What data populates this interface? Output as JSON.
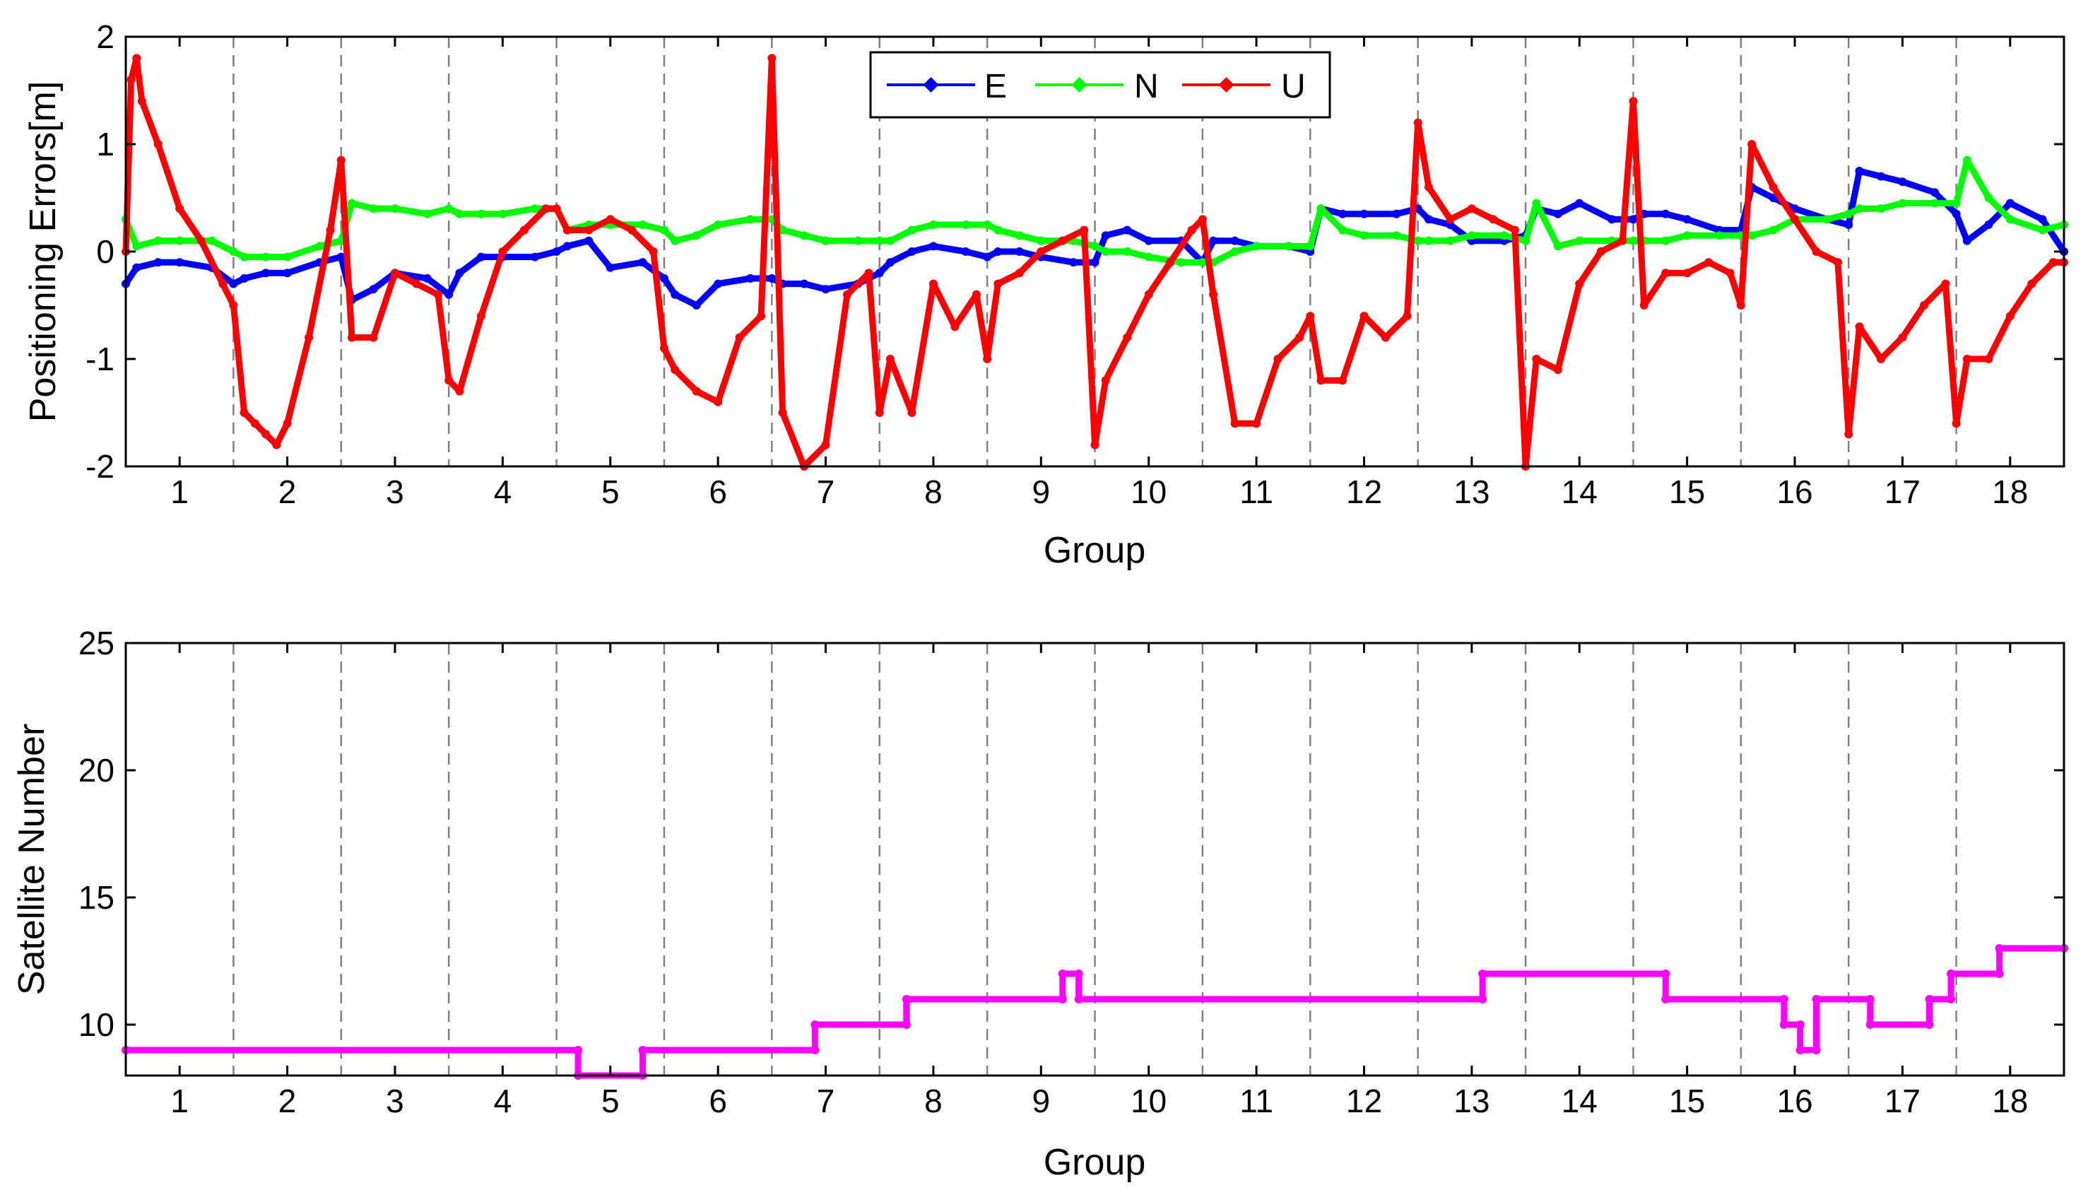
{
  "chart_data": [
    {
      "type": "line",
      "title": "",
      "xlabel": "Group",
      "ylabel": "Positioning Errors[m]",
      "xlim": [
        0.5,
        18.5
      ],
      "ylim": [
        -2,
        2
      ],
      "xticks": [
        1,
        2,
        3,
        4,
        5,
        6,
        7,
        8,
        9,
        10,
        11,
        12,
        13,
        14,
        15,
        16,
        17,
        18
      ],
      "yticks": [
        -2,
        -1,
        0,
        1,
        2
      ],
      "group_boundaries": [
        1.5,
        2.5,
        3.5,
        4.5,
        5.5,
        6.5,
        7.5,
        8.5,
        9.5,
        10.5,
        11.5,
        12.5,
        13.5,
        14.5,
        15.5,
        16.5,
        17.5
      ],
      "legend": {
        "location": "top-center",
        "entries": [
          "E",
          "N",
          "U"
        ]
      },
      "series": [
        {
          "name": "E",
          "color": "#0000ff",
          "x": [
            0.5,
            0.6,
            0.8,
            1.0,
            1.3,
            1.5,
            1.6,
            1.8,
            2.0,
            2.3,
            2.5,
            2.6,
            2.8,
            3.0,
            3.3,
            3.5,
            3.6,
            3.8,
            4.0,
            4.3,
            4.5,
            4.6,
            4.8,
            5.0,
            5.3,
            5.5,
            5.6,
            5.8,
            6.0,
            6.3,
            6.5,
            6.6,
            6.8,
            7.0,
            7.3,
            7.5,
            7.6,
            7.8,
            8.0,
            8.3,
            8.5,
            8.6,
            8.8,
            9.0,
            9.3,
            9.5,
            9.6,
            9.8,
            10.0,
            10.3,
            10.5,
            10.6,
            10.8,
            11.0,
            11.3,
            11.5,
            11.6,
            11.8,
            12.0,
            12.3,
            12.5,
            12.6,
            12.8,
            13.0,
            13.3,
            13.5,
            13.6,
            13.8,
            14.0,
            14.3,
            14.5,
            14.6,
            14.8,
            15.0,
            15.3,
            15.5,
            15.6,
            15.8,
            16.0,
            16.3,
            16.5,
            16.6,
            16.8,
            17.0,
            17.3,
            17.5,
            17.6,
            17.8,
            18.0,
            18.3,
            18.5
          ],
          "values": [
            -0.3,
            -0.15,
            -0.1,
            -0.1,
            -0.15,
            -0.3,
            -0.25,
            -0.2,
            -0.2,
            -0.1,
            -0.05,
            -0.45,
            -0.35,
            -0.2,
            -0.25,
            -0.4,
            -0.2,
            -0.05,
            -0.05,
            -0.05,
            0.0,
            0.05,
            0.1,
            -0.15,
            -0.1,
            -0.25,
            -0.4,
            -0.5,
            -0.3,
            -0.25,
            -0.25,
            -0.3,
            -0.3,
            -0.35,
            -0.3,
            -0.2,
            -0.1,
            0.0,
            0.05,
            0.0,
            -0.05,
            0.0,
            0.0,
            -0.05,
            -0.1,
            -0.1,
            0.15,
            0.2,
            0.1,
            0.1,
            -0.1,
            0.1,
            0.1,
            0.05,
            0.05,
            0.0,
            0.4,
            0.35,
            0.35,
            0.35,
            0.4,
            0.3,
            0.25,
            0.1,
            0.1,
            0.15,
            0.4,
            0.35,
            0.45,
            0.3,
            0.3,
            0.35,
            0.35,
            0.3,
            0.2,
            0.2,
            0.6,
            0.5,
            0.4,
            0.3,
            0.25,
            0.75,
            0.7,
            0.65,
            0.55,
            0.35,
            0.1,
            0.25,
            0.45,
            0.3,
            0.0
          ]
        },
        {
          "name": "N",
          "color": "#00ff00",
          "x": [
            0.5,
            0.6,
            0.8,
            1.0,
            1.3,
            1.5,
            1.6,
            1.8,
            2.0,
            2.3,
            2.5,
            2.6,
            2.8,
            3.0,
            3.3,
            3.5,
            3.6,
            3.8,
            4.0,
            4.3,
            4.5,
            4.6,
            4.8,
            5.0,
            5.3,
            5.5,
            5.6,
            5.8,
            6.0,
            6.3,
            6.5,
            6.6,
            6.8,
            7.0,
            7.3,
            7.5,
            7.6,
            7.8,
            8.0,
            8.3,
            8.5,
            8.6,
            8.8,
            9.0,
            9.3,
            9.5,
            9.6,
            9.8,
            10.0,
            10.3,
            10.5,
            10.6,
            10.8,
            11.0,
            11.3,
            11.5,
            11.6,
            11.8,
            12.0,
            12.3,
            12.5,
            12.6,
            12.8,
            13.0,
            13.3,
            13.5,
            13.6,
            13.8,
            14.0,
            14.3,
            14.5,
            14.6,
            14.8,
            15.0,
            15.3,
            15.5,
            15.6,
            15.8,
            16.0,
            16.3,
            16.5,
            16.6,
            16.8,
            17.0,
            17.3,
            17.5,
            17.6,
            17.8,
            18.0,
            18.3,
            18.5
          ],
          "values": [
            0.3,
            0.05,
            0.1,
            0.1,
            0.1,
            0.0,
            -0.05,
            -0.05,
            -0.05,
            0.05,
            0.1,
            0.45,
            0.4,
            0.4,
            0.35,
            0.4,
            0.35,
            0.35,
            0.35,
            0.4,
            0.4,
            0.2,
            0.25,
            0.25,
            0.25,
            0.2,
            0.1,
            0.15,
            0.25,
            0.3,
            0.3,
            0.2,
            0.15,
            0.1,
            0.1,
            0.1,
            0.1,
            0.2,
            0.25,
            0.25,
            0.25,
            0.2,
            0.15,
            0.1,
            0.1,
            0.05,
            0.0,
            0.0,
            -0.05,
            -0.1,
            -0.1,
            -0.1,
            0.0,
            0.05,
            0.05,
            0.05,
            0.4,
            0.2,
            0.15,
            0.15,
            0.1,
            0.1,
            0.1,
            0.15,
            0.15,
            0.1,
            0.45,
            0.05,
            0.1,
            0.1,
            0.1,
            0.1,
            0.1,
            0.15,
            0.15,
            0.15,
            0.15,
            0.2,
            0.3,
            0.3,
            0.35,
            0.4,
            0.4,
            0.45,
            0.45,
            0.45,
            0.85,
            0.5,
            0.3,
            0.2,
            0.25
          ]
        },
        {
          "name": "U",
          "color": "#ff0000",
          "x": [
            0.5,
            0.55,
            0.6,
            0.65,
            0.8,
            1.0,
            1.2,
            1.4,
            1.5,
            1.6,
            1.7,
            1.8,
            1.9,
            2.0,
            2.2,
            2.4,
            2.5,
            2.6,
            2.8,
            3.0,
            3.2,
            3.4,
            3.5,
            3.6,
            3.8,
            4.0,
            4.2,
            4.4,
            4.5,
            4.6,
            4.8,
            5.0,
            5.2,
            5.4,
            5.5,
            5.6,
            5.8,
            6.0,
            6.2,
            6.4,
            6.5,
            6.6,
            6.8,
            7.0,
            7.2,
            7.4,
            7.5,
            7.6,
            7.8,
            8.0,
            8.2,
            8.4,
            8.5,
            8.6,
            8.8,
            9.0,
            9.2,
            9.4,
            9.5,
            9.6,
            9.8,
            10.0,
            10.2,
            10.4,
            10.5,
            10.6,
            10.8,
            11.0,
            11.2,
            11.4,
            11.5,
            11.6,
            11.8,
            12.0,
            12.2,
            12.4,
            12.5,
            12.6,
            12.8,
            13.0,
            13.2,
            13.4,
            13.5,
            13.6,
            13.8,
            14.0,
            14.2,
            14.4,
            14.5,
            14.6,
            14.8,
            15.0,
            15.2,
            15.4,
            15.5,
            15.6,
            15.8,
            16.0,
            16.2,
            16.4,
            16.5,
            16.6,
            16.8,
            17.0,
            17.2,
            17.4,
            17.5,
            17.6,
            17.8,
            18.0,
            18.2,
            18.4,
            18.5
          ],
          "values": [
            0.0,
            1.6,
            1.8,
            1.4,
            1.0,
            0.4,
            0.1,
            -0.3,
            -0.5,
            -1.5,
            -1.6,
            -1.7,
            -1.8,
            -1.6,
            -0.8,
            0.2,
            0.85,
            -0.8,
            -0.8,
            -0.2,
            -0.3,
            -0.4,
            -1.2,
            -1.3,
            -0.6,
            0.0,
            0.2,
            0.4,
            0.4,
            0.2,
            0.2,
            0.3,
            0.2,
            0.0,
            -0.9,
            -1.1,
            -1.3,
            -1.4,
            -0.8,
            -0.6,
            1.8,
            -1.5,
            -2.0,
            -1.8,
            -0.4,
            -0.2,
            -1.5,
            -1.0,
            -1.5,
            -0.3,
            -0.7,
            -0.4,
            -1.0,
            -0.3,
            -0.2,
            0.0,
            0.1,
            0.2,
            -1.8,
            -1.2,
            -0.8,
            -0.4,
            -0.1,
            0.2,
            0.3,
            -0.4,
            -1.6,
            -1.6,
            -1.0,
            -0.8,
            -0.6,
            -1.2,
            -1.2,
            -0.6,
            -0.8,
            -0.6,
            1.2,
            0.6,
            0.3,
            0.4,
            0.3,
            0.2,
            -2.0,
            -1.0,
            -1.1,
            -0.3,
            0.0,
            0.1,
            1.4,
            -0.5,
            -0.2,
            -0.2,
            -0.1,
            -0.2,
            -0.5,
            1.0,
            0.6,
            0.3,
            0.0,
            -0.1,
            -1.7,
            -0.7,
            -1.0,
            -0.8,
            -0.5,
            -0.3,
            -1.6,
            -1.0,
            -1.0,
            -0.6,
            -0.3,
            -0.1,
            -0.1
          ]
        }
      ]
    },
    {
      "type": "line",
      "title": "",
      "xlabel": "Group",
      "ylabel": "Satellite Number",
      "xlim": [
        0.5,
        18.5
      ],
      "ylim": [
        8,
        25
      ],
      "xticks": [
        1,
        2,
        3,
        4,
        5,
        6,
        7,
        8,
        9,
        10,
        11,
        12,
        13,
        14,
        15,
        16,
        17,
        18
      ],
      "yticks": [
        10,
        15,
        20,
        25
      ],
      "group_boundaries": [
        1.5,
        2.5,
        3.5,
        4.5,
        5.5,
        6.5,
        7.5,
        8.5,
        9.5,
        10.5,
        11.5,
        12.5,
        13.5,
        14.5,
        15.5,
        16.5,
        17.5
      ],
      "series": [
        {
          "name": "Satellite Number",
          "color": "#ff00ff",
          "x": [
            0.5,
            4.7,
            4.7,
            5.3,
            5.3,
            6.9,
            6.9,
            7.75,
            7.75,
            9.2,
            9.2,
            9.35,
            9.35,
            13.1,
            13.1,
            14.8,
            14.8,
            15.9,
            15.9,
            16.05,
            16.05,
            16.2,
            16.2,
            16.7,
            16.7,
            17.25,
            17.25,
            17.45,
            17.45,
            17.9,
            17.9,
            18.5
          ],
          "values": [
            9,
            9,
            8,
            8,
            9,
            9,
            10,
            10,
            11,
            11,
            12,
            12,
            11,
            11,
            12,
            12,
            11,
            11,
            10,
            10,
            9,
            9,
            11,
            11,
            10,
            10,
            11,
            11,
            12,
            12,
            13,
            13
          ]
        }
      ]
    }
  ]
}
